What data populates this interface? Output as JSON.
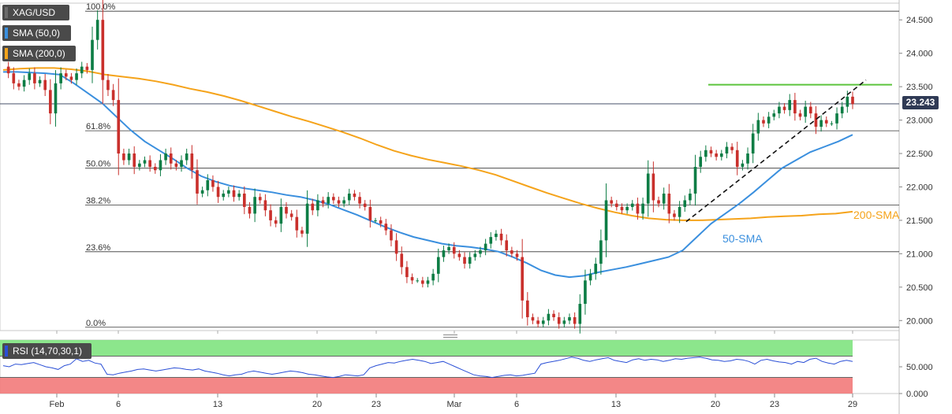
{
  "symbol": "XAG/USD",
  "legend": {
    "price": "XAG/USD",
    "sma50": "SMA (50,0)",
    "sma200": "SMA (200,0)",
    "rsi": "RSI (14,70,30,1)"
  },
  "current_price_label": "23.243",
  "colors": {
    "up": "#0d7d45",
    "down": "#c9302c",
    "sma50": "#3a8fde",
    "sma200": "#f5a31a",
    "rsi_line": "#2a4fd6",
    "overbought_fill": "#7fe37f",
    "oversold_fill": "#f27a7a",
    "resistance": "#5cc43c",
    "price_badge": "#2f3a55"
  },
  "chart_data": [
    {
      "type": "candlestick",
      "title": "",
      "y_axis": {
        "range": [
          19.85,
          24.75
        ],
        "ticks": [
          "24.500",
          "24.000",
          "23.500",
          "23.000",
          "22.500",
          "22.000",
          "21.500",
          "21.000",
          "20.500",
          "20.000"
        ],
        "tick_values": [
          24.5,
          24.0,
          23.5,
          23.0,
          22.5,
          22.0,
          21.5,
          21.0,
          20.5,
          20.0
        ]
      },
      "x_axis": {
        "tick_labels": [
          "Feb",
          "6",
          "13",
          "20",
          "23",
          "Mar",
          "6",
          "13",
          "20",
          "23",
          "29"
        ]
      },
      "fibonacci_levels": [
        {
          "label": "100.0%",
          "value": 24.63
        },
        {
          "label": "61.8%",
          "value": 22.84
        },
        {
          "label": "50.0%",
          "value": 22.28
        },
        {
          "label": "38.2%",
          "value": 21.73
        },
        {
          "label": "23.6%",
          "value": 21.03
        },
        {
          "label": "0.0%",
          "value": 19.9
        }
      ],
      "current_price": 23.243,
      "annotations": {
        "sma50": "50-SMA",
        "sma200": "200-SMA"
      },
      "resistance_level": 23.53,
      "trendline": {
        "from": [
          21.48
        ],
        "to": [
          23.6
        ]
      },
      "price_path": [
        23.8,
        23.7,
        23.55,
        23.5,
        23.6,
        23.7,
        23.55,
        23.6,
        23.45,
        23.1,
        23.55,
        23.7,
        23.65,
        23.6,
        23.7,
        23.8,
        23.75,
        24.2,
        24.5,
        23.6,
        23.45,
        23.3,
        22.5,
        22.4,
        22.5,
        22.3,
        22.35,
        22.4,
        22.3,
        22.25,
        22.4,
        22.5,
        22.35,
        22.3,
        22.4,
        22.5,
        22.25,
        21.9,
        21.95,
        22.1,
        22.0,
        21.85,
        21.9,
        21.95,
        21.85,
        21.9,
        21.7,
        21.6,
        21.85,
        21.8,
        21.65,
        21.5,
        21.45,
        21.7,
        21.6,
        21.55,
        21.35,
        21.3,
        21.75,
        21.65,
        21.8,
        21.75,
        21.85,
        21.8,
        21.75,
        21.8,
        21.9,
        21.85,
        21.75,
        21.7,
        21.5,
        21.5,
        21.45,
        21.35,
        21.2,
        21.0,
        20.8,
        20.65,
        20.6,
        20.6,
        20.55,
        20.6,
        20.7,
        20.95,
        21.05,
        21.1,
        21.0,
        20.95,
        20.85,
        20.95,
        21.0,
        21.05,
        21.15,
        21.25,
        21.3,
        21.2,
        21.05,
        21.0,
        20.95,
        20.3,
        20.05,
        20.0,
        19.95,
        20.0,
        20.1,
        20.05,
        19.95,
        20.0,
        20.05,
        19.95,
        20.25,
        20.6,
        20.7,
        20.85,
        21.2,
        21.8,
        21.75,
        21.7,
        21.65,
        21.7,
        21.75,
        21.6,
        21.75,
        22.2,
        21.8,
        21.75,
        21.9,
        21.6,
        21.55,
        21.7,
        21.8,
        21.9,
        22.3,
        22.45,
        22.55,
        22.5,
        22.45,
        22.5,
        22.6,
        22.55,
        22.3,
        22.35,
        22.5,
        22.8,
        23.0,
        22.95,
        23.05,
        23.1,
        23.2,
        23.15,
        23.3,
        23.1,
        23.05,
        23.2,
        23.1,
        22.9,
        23.0,
        22.95,
        22.95,
        23.1,
        23.2,
        23.35,
        23.24
      ],
      "sma50": [
        23.72,
        23.72,
        23.71,
        23.7,
        23.68,
        23.55,
        23.4,
        23.25,
        23.05,
        22.85,
        22.68,
        22.55,
        22.42,
        22.28,
        22.16,
        22.08,
        22.02,
        21.98,
        21.95,
        21.92,
        21.88,
        21.85,
        21.8,
        21.74,
        21.66,
        21.58,
        21.49,
        21.4,
        21.32,
        21.25,
        21.2,
        21.15,
        21.12,
        21.1,
        21.07,
        21.03,
        20.95,
        20.86,
        20.75,
        20.68,
        20.65,
        20.67,
        20.72,
        20.76,
        20.8,
        20.85,
        20.9,
        20.95,
        21.05,
        21.25,
        21.45,
        21.6,
        21.75,
        21.92,
        22.1,
        22.28,
        22.4,
        22.52,
        22.6,
        22.68,
        22.78
      ],
      "sma200": [
        23.75,
        23.77,
        23.78,
        23.78,
        23.76,
        23.73,
        23.68,
        23.65,
        23.62,
        23.58,
        23.53,
        23.47,
        23.42,
        23.36,
        23.29,
        23.21,
        23.13,
        23.05,
        22.98,
        22.9,
        22.82,
        22.73,
        22.63,
        22.54,
        22.47,
        22.41,
        22.36,
        22.31,
        22.25,
        22.18,
        22.09,
        22.0,
        21.91,
        21.83,
        21.75,
        21.68,
        21.62,
        21.57,
        21.53,
        21.51,
        21.5,
        21.5,
        21.51,
        21.52,
        21.53,
        21.55,
        21.56,
        21.57,
        21.59,
        21.6,
        21.63
      ],
      "rsi": {
        "range": [
          0,
          100
        ],
        "ticks": [
          "50.000",
          "0.000"
        ],
        "tick_values": [
          50,
          0
        ],
        "overbought": 70,
        "oversold": 30,
        "values": [
          52,
          50,
          55,
          54,
          56,
          58,
          54,
          50,
          48,
          45,
          52,
          55,
          65,
          60,
          62,
          57,
          55,
          36,
          35,
          38,
          40,
          42,
          45,
          46,
          44,
          42,
          44,
          46,
          48,
          47,
          45,
          44,
          46,
          42,
          40,
          38,
          35,
          33,
          35,
          36,
          40,
          42,
          40,
          38,
          36,
          38,
          40,
          42,
          41,
          39,
          36,
          35,
          33,
          31,
          30,
          32,
          35,
          34,
          33,
          35,
          48,
          52,
          55,
          58,
          57,
          60,
          62,
          64,
          62,
          60,
          56,
          58,
          60,
          55,
          50,
          45,
          40,
          35,
          33,
          32,
          30,
          32,
          34,
          35,
          33,
          34,
          36,
          38,
          55,
          58,
          60,
          62,
          65,
          68,
          66,
          62,
          60,
          63,
          65,
          67,
          62,
          60,
          58,
          63,
          65,
          62,
          64,
          63,
          60,
          62,
          65,
          64,
          66,
          67,
          68,
          66,
          63,
          62,
          60,
          61,
          64,
          63,
          60,
          55,
          62,
          64,
          61,
          59,
          58,
          55,
          60,
          58,
          64,
          66,
          60,
          57,
          55,
          60,
          62,
          60
        ]
      }
    }
  ]
}
